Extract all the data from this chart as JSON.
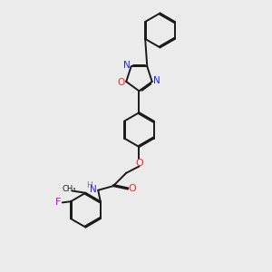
{
  "bg_color": "#ebebeb",
  "bond_color": "#1a1a1a",
  "N_color": "#2020ff",
  "O_color": "#ff2020",
  "F_color": "#cc00cc",
  "H_color": "#7a7a7a",
  "line_width": 1.4,
  "dbo": 0.055,
  "xlim": [
    0,
    10
  ],
  "ylim": [
    0,
    13
  ]
}
